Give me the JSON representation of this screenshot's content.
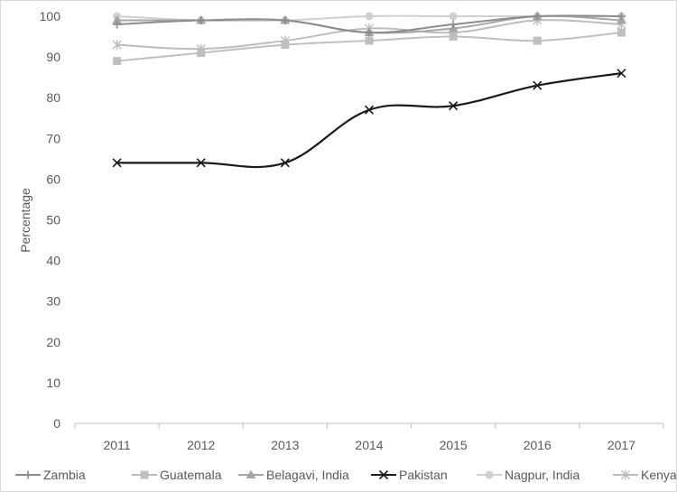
{
  "chart_data": {
    "type": "line",
    "title": "",
    "xlabel": "",
    "ylabel": "Percentage",
    "ylim": [
      0,
      100
    ],
    "yticks": [
      0,
      10,
      20,
      30,
      40,
      50,
      60,
      70,
      80,
      90,
      100
    ],
    "categories": [
      "2011",
      "2012",
      "2013",
      "2014",
      "2015",
      "2016",
      "2017"
    ],
    "grid": false,
    "legend_position": "bottom",
    "series": [
      {
        "name": "Zambia",
        "marker": "plus",
        "color": "#8c8c8c",
        "values": [
          98,
          99,
          99,
          96,
          98,
          100,
          100
        ]
      },
      {
        "name": "Guatemala",
        "marker": "square",
        "color": "#bfbfbf",
        "values": [
          89,
          91,
          93,
          94,
          95,
          94,
          96
        ]
      },
      {
        "name": "Belagavi, India",
        "marker": "triangle",
        "color": "#a6a6a6",
        "values": [
          99,
          99,
          99,
          96,
          97,
          100,
          99
        ]
      },
      {
        "name": "Pakistan",
        "marker": "x",
        "color": "#1a1a1a",
        "values": [
          64,
          64,
          64,
          77,
          78,
          83,
          86
        ]
      },
      {
        "name": "Nagpur, India",
        "marker": "circle",
        "color": "#d0d0d0",
        "values": [
          100,
          99,
          99,
          100,
          100,
          100,
          100
        ]
      },
      {
        "name": "Kenya",
        "marker": "star",
        "color": "#bdbdbd",
        "values": [
          93,
          92,
          94,
          97,
          96,
          99,
          98
        ]
      }
    ]
  }
}
